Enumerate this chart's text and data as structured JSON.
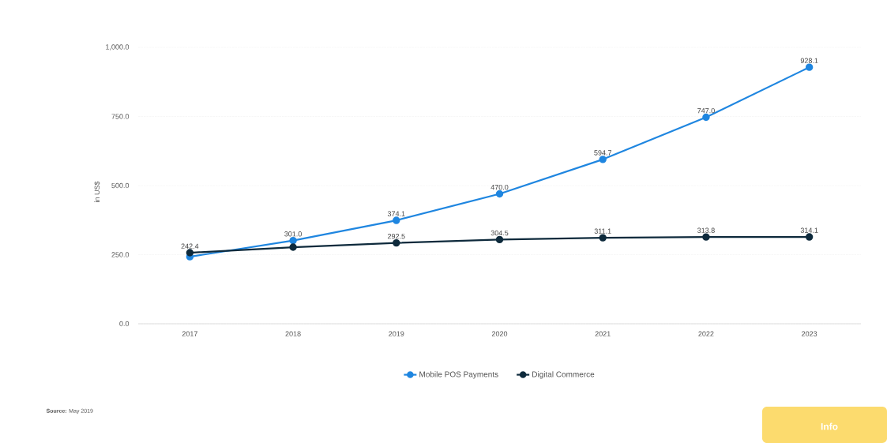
{
  "chart_data": {
    "type": "line",
    "ylabel": "in US$",
    "categories": [
      "2017",
      "2018",
      "2019",
      "2020",
      "2021",
      "2022",
      "2023"
    ],
    "series": [
      {
        "name": "Mobile POS Payments",
        "color": "#1f86e0",
        "values": [
          242.4,
          301.0,
          374.1,
          470.0,
          594.7,
          747.0,
          928.1
        ],
        "value_labels": [
          "242.4",
          "301.0",
          "374.1",
          "470.0",
          "594.7",
          "747.0",
          "928.1"
        ]
      },
      {
        "name": "Digital Commerce",
        "color": "#0e2a3c",
        "values": [
          257,
          277,
          292.5,
          304.5,
          311.1,
          313.8,
          314.1
        ],
        "value_labels": [
          null,
          null,
          "292.5",
          "304.5",
          "311.1",
          "313.8",
          "314.1"
        ]
      }
    ],
    "ylim": [
      0,
      1000
    ],
    "yticks": [
      {
        "value": 0,
        "label": "0.0"
      },
      {
        "value": 250,
        "label": "250.0"
      },
      {
        "value": 500,
        "label": "500.0"
      },
      {
        "value": 750,
        "label": "750.0"
      },
      {
        "value": 1000,
        "label": "1,000.0"
      }
    ],
    "grid": "y",
    "legend": "bottom",
    "marker": "circle",
    "line_style": "solid",
    "annotations": [
      "**Source:** May 2019",
      "Info"
    ]
  }
}
